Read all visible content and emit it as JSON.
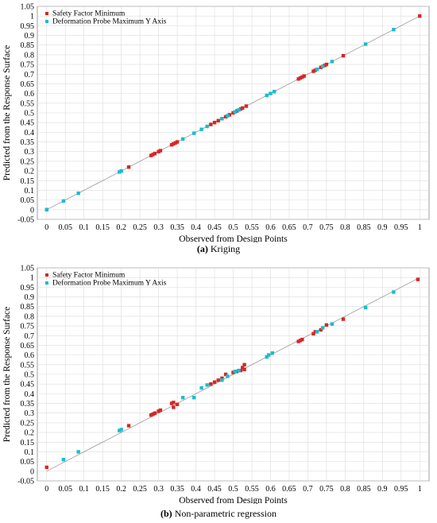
{
  "chart_data": [
    {
      "type": "scatter",
      "panel_id": "a",
      "caption_tag": "(a)",
      "caption_text": " Kriging",
      "xlabel": "Observed from Design Points",
      "ylabel": "Predicted from the Response Surface",
      "xlim": [
        -0.025,
        1.025
      ],
      "ylim": [
        -0.05,
        1.05
      ],
      "xticks": [
        "0",
        "0.05",
        "0.1",
        "0.15",
        "0.2",
        "0.25",
        "0.3",
        "0.35",
        "0.4",
        "0.45",
        "0.5",
        "0.55",
        "0.6",
        "0.65",
        "0.7",
        "0.75",
        "0.8",
        "0.85",
        "0.9",
        "0.95",
        "1"
      ],
      "yticks": [
        "-0.05",
        "0",
        "0.05",
        "0.1",
        "0.15",
        "0.2",
        "0.25",
        "0.3",
        "0.35",
        "0.4",
        "0.45",
        "0.5",
        "0.55",
        "0.6",
        "0.65",
        "0.7",
        "0.75",
        "0.8",
        "0.85",
        "0.9",
        "0.95",
        "1",
        "1.05"
      ],
      "grid": true,
      "reference_line": true,
      "legend_position": "top-left",
      "series": [
        {
          "name": "Safety Factor Minimum",
          "color": "#d62728",
          "points": [
            [
              0.0,
              0.0
            ],
            [
              0.22,
              0.22
            ],
            [
              0.28,
              0.28
            ],
            [
              0.285,
              0.285
            ],
            [
              0.29,
              0.29
            ],
            [
              0.3,
              0.3
            ],
            [
              0.305,
              0.305
            ],
            [
              0.335,
              0.335
            ],
            [
              0.34,
              0.34
            ],
            [
              0.345,
              0.345
            ],
            [
              0.35,
              0.35
            ],
            [
              0.44,
              0.44
            ],
            [
              0.45,
              0.45
            ],
            [
              0.46,
              0.46
            ],
            [
              0.47,
              0.47
            ],
            [
              0.48,
              0.48
            ],
            [
              0.49,
              0.49
            ],
            [
              0.5,
              0.5
            ],
            [
              0.51,
              0.51
            ],
            [
              0.52,
              0.52
            ],
            [
              0.525,
              0.525
            ],
            [
              0.535,
              0.535
            ],
            [
              0.675,
              0.675
            ],
            [
              0.68,
              0.68
            ],
            [
              0.685,
              0.685
            ],
            [
              0.69,
              0.69
            ],
            [
              0.715,
              0.715
            ],
            [
              0.72,
              0.72
            ],
            [
              0.735,
              0.735
            ],
            [
              0.745,
              0.745
            ],
            [
              0.75,
              0.75
            ],
            [
              0.795,
              0.795
            ],
            [
              1.0,
              1.0
            ]
          ]
        },
        {
          "name": "Deformation Probe Maximum Y Axis",
          "color": "#17becf",
          "points": [
            [
              0.0,
              0.0
            ],
            [
              0.045,
              0.045
            ],
            [
              0.085,
              0.085
            ],
            [
              0.195,
              0.195
            ],
            [
              0.2,
              0.2
            ],
            [
              0.365,
              0.365
            ],
            [
              0.395,
              0.395
            ],
            [
              0.415,
              0.415
            ],
            [
              0.43,
              0.43
            ],
            [
              0.47,
              0.47
            ],
            [
              0.485,
              0.485
            ],
            [
              0.505,
              0.505
            ],
            [
              0.515,
              0.515
            ],
            [
              0.59,
              0.59
            ],
            [
              0.6,
              0.6
            ],
            [
              0.61,
              0.61
            ],
            [
              0.725,
              0.725
            ],
            [
              0.74,
              0.74
            ],
            [
              0.765,
              0.765
            ],
            [
              0.855,
              0.855
            ],
            [
              0.93,
              0.93
            ]
          ]
        }
      ]
    },
    {
      "type": "scatter",
      "panel_id": "b",
      "caption_tag": "(b)",
      "caption_text": " Non-parametric regression",
      "xlabel": "Observed from Design Points",
      "ylabel": "Predicted from the Response Surface",
      "xlim": [
        -0.025,
        1.025
      ],
      "ylim": [
        -0.05,
        1.05
      ],
      "xticks": [
        "0",
        "0.05",
        "0.1",
        "0.15",
        "0.2",
        "0.25",
        "0.3",
        "0.35",
        "0.4",
        "0.45",
        "0.5",
        "0.55",
        "0.6",
        "0.65",
        "0.7",
        "0.75",
        "0.8",
        "0.85",
        "0.9",
        "0.95",
        "1"
      ],
      "yticks": [
        "-0.05",
        "0",
        "0.05",
        "0.1",
        "0.15",
        "0.2",
        "0.25",
        "0.3",
        "0.35",
        "0.4",
        "0.45",
        "0.5",
        "0.55",
        "0.6",
        "0.65",
        "0.7",
        "0.75",
        "0.8",
        "0.85",
        "0.9",
        "0.95",
        "1",
        "1.05"
      ],
      "grid": true,
      "reference_line": true,
      "legend_position": "top-left",
      "series": [
        {
          "name": "Safety Factor Minimum",
          "color": "#d62728",
          "points": [
            [
              0.0,
              0.02
            ],
            [
              0.22,
              0.235
            ],
            [
              0.28,
              0.29
            ],
            [
              0.285,
              0.295
            ],
            [
              0.29,
              0.3
            ],
            [
              0.3,
              0.31
            ],
            [
              0.305,
              0.315
            ],
            [
              0.335,
              0.35
            ],
            [
              0.34,
              0.355
            ],
            [
              0.34,
              0.33
            ],
            [
              0.35,
              0.345
            ],
            [
              0.44,
              0.45
            ],
            [
              0.45,
              0.46
            ],
            [
              0.46,
              0.47
            ],
            [
              0.47,
              0.48
            ],
            [
              0.48,
              0.5
            ],
            [
              0.5,
              0.51
            ],
            [
              0.51,
              0.515
            ],
            [
              0.52,
              0.52
            ],
            [
              0.525,
              0.535
            ],
            [
              0.53,
              0.55
            ],
            [
              0.53,
              0.525
            ],
            [
              0.675,
              0.67
            ],
            [
              0.68,
              0.675
            ],
            [
              0.685,
              0.68
            ],
            [
              0.715,
              0.71
            ],
            [
              0.72,
              0.72
            ],
            [
              0.735,
              0.73
            ],
            [
              0.75,
              0.755
            ],
            [
              0.795,
              0.785
            ],
            [
              0.995,
              0.99
            ]
          ]
        },
        {
          "name": "Deformation Probe Maximum Y Axis",
          "color": "#17becf",
          "points": [
            [
              0.045,
              0.06
            ],
            [
              0.085,
              0.1
            ],
            [
              0.195,
              0.21
            ],
            [
              0.2,
              0.215
            ],
            [
              0.365,
              0.38
            ],
            [
              0.395,
              0.38
            ],
            [
              0.415,
              0.43
            ],
            [
              0.43,
              0.445
            ],
            [
              0.47,
              0.47
            ],
            [
              0.485,
              0.49
            ],
            [
              0.505,
              0.515
            ],
            [
              0.515,
              0.52
            ],
            [
              0.59,
              0.59
            ],
            [
              0.595,
              0.6
            ],
            [
              0.605,
              0.61
            ],
            [
              0.725,
              0.72
            ],
            [
              0.74,
              0.74
            ],
            [
              0.765,
              0.76
            ],
            [
              0.855,
              0.845
            ],
            [
              0.93,
              0.925
            ]
          ]
        }
      ]
    }
  ]
}
